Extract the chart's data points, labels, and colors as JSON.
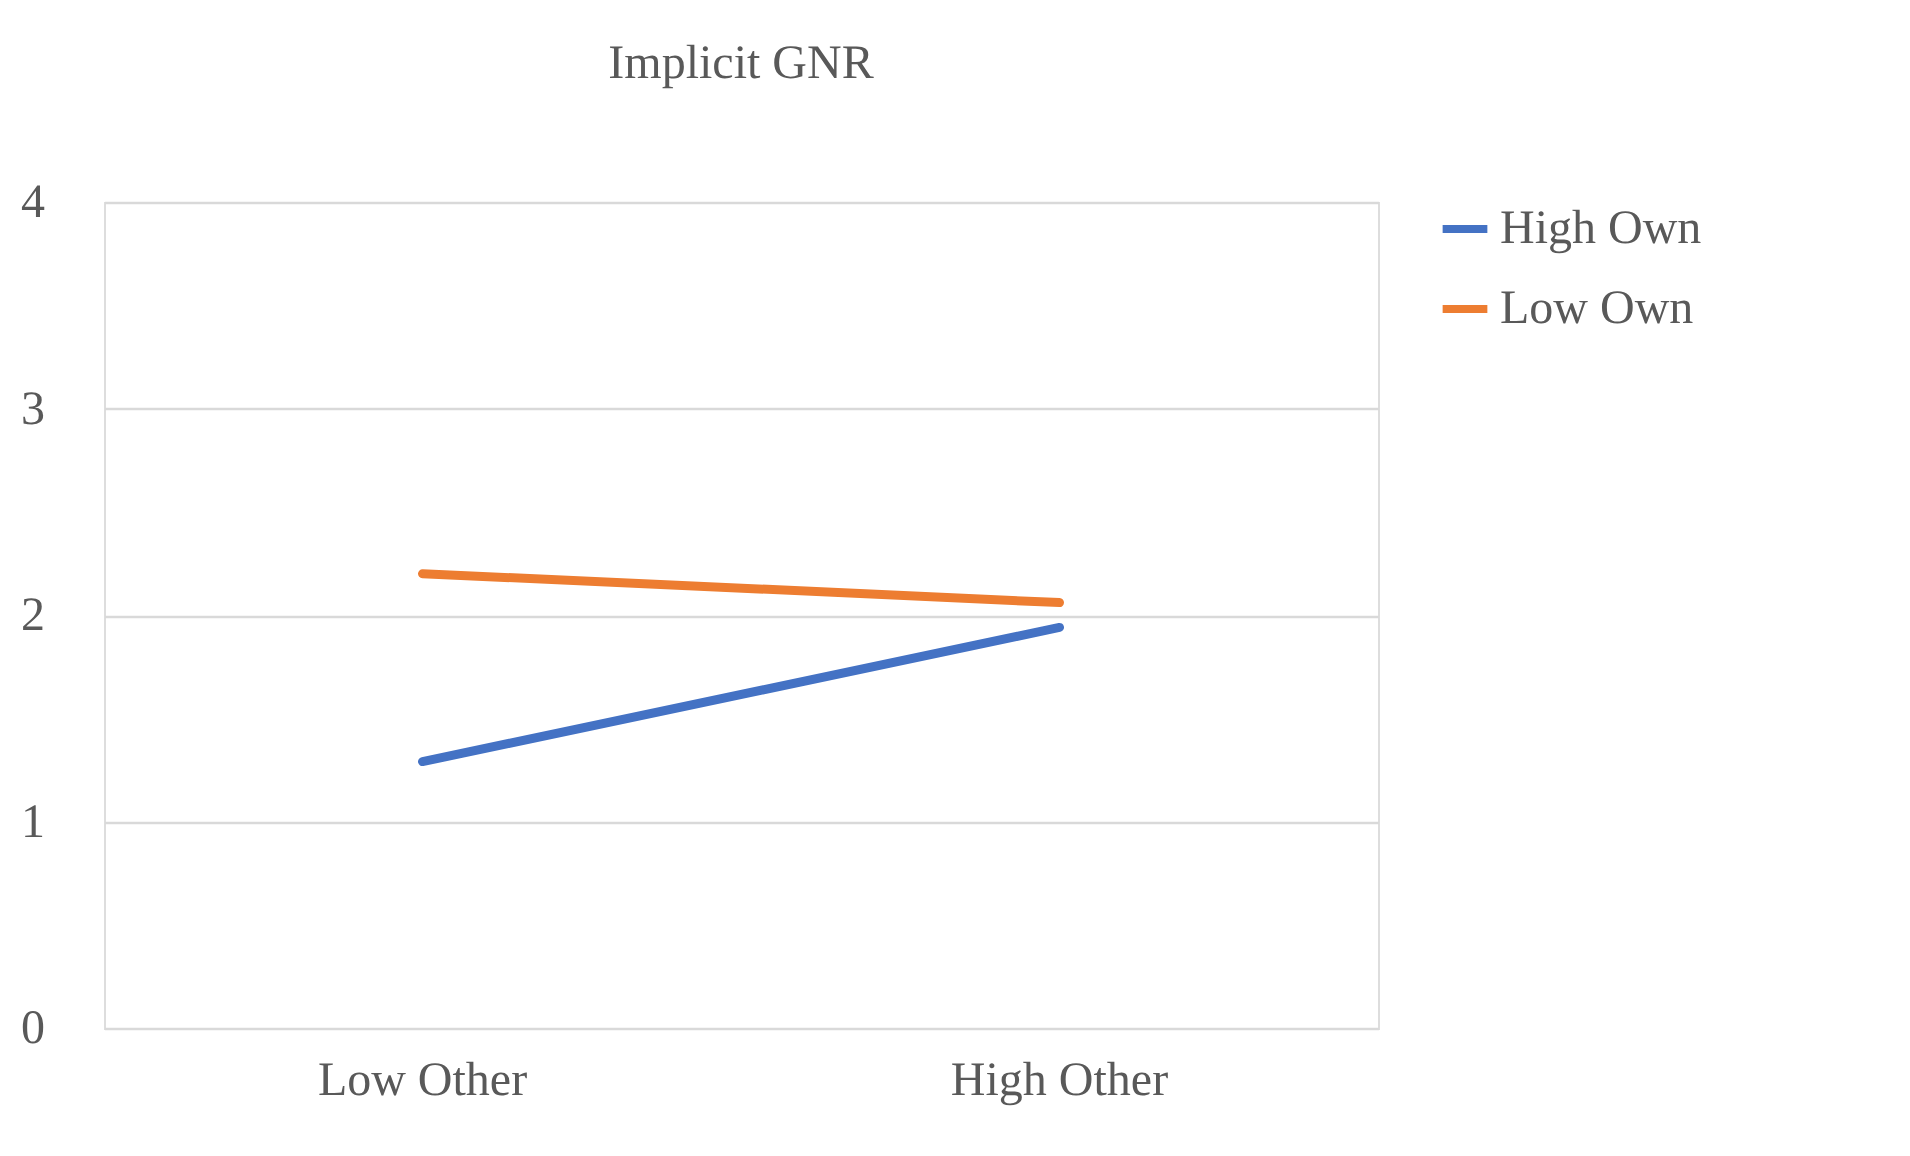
{
  "chart_data": {
    "type": "line",
    "title": "Implicit GNR",
    "categories": [
      "Low Other",
      "High Other"
    ],
    "series": [
      {
        "name": "High Own",
        "color": "#4472c4",
        "values": [
          1.29,
          1.94
        ]
      },
      {
        "name": "Low Own",
        "color": "#ed7d31",
        "values": [
          2.2,
          2.06
        ]
      }
    ],
    "ylim": [
      0,
      4
    ],
    "yticks": [
      0,
      1,
      2,
      3,
      4
    ],
    "grid": "y",
    "legend": "right",
    "marker": "none",
    "line_style": "solid"
  }
}
